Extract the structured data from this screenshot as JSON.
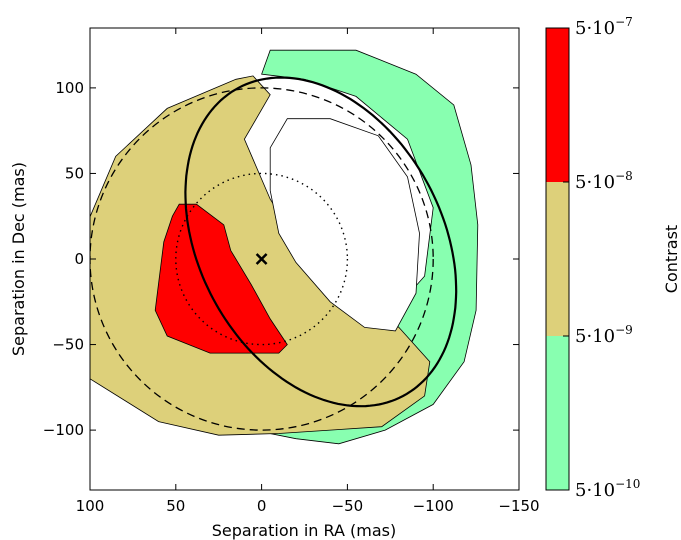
{
  "chart_data": {
    "type": "contour",
    "xlabel": "Separation in RA (mas)",
    "ylabel": "Separation in Dec (mas)",
    "xlim": [
      100,
      -150
    ],
    "ylim": [
      -135,
      135
    ],
    "x_ticks": [
      "100",
      "50",
      "0",
      "−50",
      "−100",
      "−150"
    ],
    "x_tick_values": [
      100,
      50,
      0,
      -50,
      -100,
      -150
    ],
    "y_ticks": [
      "100",
      "50",
      "0",
      "−50",
      "−100"
    ],
    "y_tick_values": [
      100,
      50,
      0,
      -50,
      -100
    ],
    "center_marker": {
      "symbol": "×",
      "x": 0,
      "y": 0
    },
    "dotted_circle": {
      "center": [
        0,
        0
      ],
      "radius": 50
    },
    "dashed_circle": {
      "center": [
        0,
        0
      ],
      "radius": 100
    },
    "solid_ellipse": {
      "center": [
        -34.5,
        10
      ],
      "semi_major": 102,
      "semi_minor": 71,
      "angle_deg": 62
    },
    "filled_regions": [
      {
        "level": "5e-10 to 5e-9",
        "color": "#88ffb0",
        "outline": [
          [
            0,
            108
          ],
          [
            -5,
            122
          ],
          [
            -55,
            122
          ],
          [
            -90,
            108
          ],
          [
            -112,
            90
          ],
          [
            -122,
            55
          ],
          [
            -126,
            20
          ],
          [
            -125,
            -30
          ],
          [
            -118,
            -60
          ],
          [
            -100,
            -85
          ],
          [
            -72,
            -100
          ],
          [
            -45,
            -108
          ],
          [
            -20,
            -105
          ],
          [
            5,
            -100
          ],
          [
            15,
            -88
          ],
          [
            5,
            -70
          ],
          [
            -20,
            -60
          ],
          [
            -55,
            -55
          ],
          [
            -95,
            -10
          ],
          [
            -100,
            30
          ],
          [
            -85,
            70
          ],
          [
            -55,
            95
          ],
          [
            -25,
            105
          ]
        ]
      },
      {
        "level": "5e-9 to 5e-8",
        "color": "#ddd07a",
        "outline": [
          [
            5,
            107
          ],
          [
            -5,
            96
          ],
          [
            10,
            70
          ],
          [
            -5,
            35
          ],
          [
            -25,
            3
          ],
          [
            -50,
            -12
          ],
          [
            -80,
            -40
          ],
          [
            -98,
            -60
          ],
          [
            -95,
            -80
          ],
          [
            -70,
            -98
          ],
          [
            -40,
            -100
          ],
          [
            -10,
            -102
          ],
          [
            25,
            -103
          ],
          [
            60,
            -95
          ],
          [
            100,
            -70
          ],
          [
            102,
            -20
          ],
          [
            102,
            20
          ],
          [
            85,
            60
          ],
          [
            55,
            88
          ],
          [
            15,
            105
          ]
        ]
      },
      {
        "level": "5e-8 to 5e-7",
        "color": "#ff0000",
        "outline": [
          [
            48,
            32
          ],
          [
            38,
            32
          ],
          [
            22,
            20
          ],
          [
            18,
            5
          ],
          [
            6,
            -15
          ],
          [
            -5,
            -35
          ],
          [
            -15,
            -50
          ],
          [
            -10,
            -55
          ],
          [
            30,
            -55
          ],
          [
            55,
            -45
          ],
          [
            62,
            -30
          ],
          [
            57,
            10
          ],
          [
            52,
            25
          ]
        ]
      }
    ],
    "no_data_region": {
      "color": "#ffffff",
      "outline": [
        [
          -15,
          82
        ],
        [
          -40,
          82
        ],
        [
          -68,
          72
        ],
        [
          -85,
          48
        ],
        [
          -92,
          15
        ],
        [
          -90,
          -20
        ],
        [
          -78,
          -42
        ],
        [
          -60,
          -40
        ],
        [
          -40,
          -25
        ],
        [
          -20,
          -2
        ],
        [
          -10,
          15
        ],
        [
          -5,
          40
        ],
        [
          -5,
          65
        ]
      ]
    },
    "colorbar": {
      "label": "Contrast",
      "boundaries": [
        5e-10,
        5e-09,
        5e-08,
        5e-07
      ],
      "colors": [
        "#88ffb0",
        "#ddd07a",
        "#ff0000"
      ],
      "tick_labels": [
        {
          "base": "5·10",
          "exp": "−10"
        },
        {
          "base": "5·10",
          "exp": "−9"
        },
        {
          "base": "5·10",
          "exp": "−8"
        },
        {
          "base": "5·10",
          "exp": "−7"
        }
      ]
    }
  }
}
